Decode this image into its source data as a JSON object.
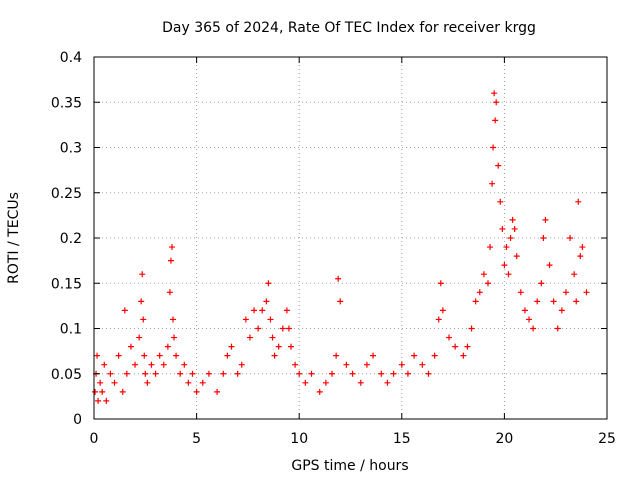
{
  "chart_data": {
    "type": "scatter",
    "title": "Day 365 of 2024, Rate Of TEC Index for receiver krgg",
    "xlabel": "GPS time / hours",
    "ylabel": "ROTI / TECUs",
    "xlim": [
      0,
      25
    ],
    "ylim": [
      0,
      0.4
    ],
    "xticks": [
      0,
      5,
      10,
      15,
      20,
      25
    ],
    "yticks": [
      0,
      0.05,
      0.1,
      0.15,
      0.2,
      0.25,
      0.3,
      0.35,
      0.4
    ],
    "xtick_labels": [
      "0",
      "5",
      "10",
      "15",
      "20",
      "25"
    ],
    "ytick_labels": [
      "0",
      "0.05",
      "0.1",
      "0.15",
      "0.2",
      "0.25",
      "0.3",
      "0.35",
      "0.4"
    ],
    "grid": true,
    "marker": "+",
    "color": "#ff0000",
    "series": [
      {
        "name": "ROTI",
        "x": [
          0.05,
          0.1,
          0.15,
          0.2,
          0.3,
          0.4,
          0.5,
          0.6,
          0.8,
          1.0,
          1.2,
          1.4,
          1.5,
          1.6,
          1.8,
          2.0,
          2.2,
          2.3,
          2.35,
          2.4,
          2.45,
          2.5,
          2.6,
          2.8,
          3.0,
          3.2,
          3.4,
          3.6,
          3.7,
          3.75,
          3.8,
          3.85,
          3.9,
          4.0,
          4.2,
          4.4,
          4.6,
          4.8,
          5.0,
          5.3,
          5.6,
          6.0,
          6.3,
          6.5,
          6.7,
          7.0,
          7.2,
          7.4,
          7.6,
          7.8,
          8.0,
          8.2,
          8.4,
          8.5,
          8.6,
          8.7,
          8.8,
          9.0,
          9.2,
          9.4,
          9.5,
          9.6,
          9.8,
          10.0,
          10.3,
          10.6,
          11.0,
          11.3,
          11.6,
          11.8,
          11.9,
          12.0,
          12.3,
          12.6,
          13.0,
          13.3,
          13.6,
          14.0,
          14.3,
          14.6,
          15.0,
          15.3,
          15.6,
          16.0,
          16.3,
          16.6,
          16.8,
          16.9,
          17.0,
          17.3,
          17.6,
          18.0,
          18.2,
          18.4,
          18.6,
          18.8,
          19.0,
          19.2,
          19.3,
          19.4,
          19.45,
          19.5,
          19.55,
          19.6,
          19.7,
          19.8,
          19.9,
          20.0,
          20.1,
          20.2,
          20.3,
          20.4,
          20.5,
          20.6,
          20.8,
          21.0,
          21.2,
          21.4,
          21.6,
          21.8,
          21.9,
          22.0,
          22.2,
          22.4,
          22.6,
          22.8,
          23.0,
          23.2,
          23.4,
          23.5,
          23.6,
          23.7,
          23.8,
          24.0
        ],
        "y": [
          0.03,
          0.05,
          0.07,
          0.02,
          0.04,
          0.03,
          0.06,
          0.02,
          0.05,
          0.04,
          0.07,
          0.03,
          0.12,
          0.05,
          0.08,
          0.06,
          0.09,
          0.13,
          0.16,
          0.11,
          0.07,
          0.05,
          0.04,
          0.06,
          0.05,
          0.07,
          0.06,
          0.08,
          0.14,
          0.175,
          0.19,
          0.11,
          0.09,
          0.07,
          0.05,
          0.06,
          0.04,
          0.05,
          0.03,
          0.04,
          0.05,
          0.03,
          0.05,
          0.07,
          0.08,
          0.05,
          0.06,
          0.11,
          0.09,
          0.12,
          0.1,
          0.12,
          0.13,
          0.15,
          0.11,
          0.09,
          0.07,
          0.08,
          0.1,
          0.12,
          0.1,
          0.08,
          0.06,
          0.05,
          0.04,
          0.05,
          0.03,
          0.04,
          0.05,
          0.07,
          0.155,
          0.13,
          0.06,
          0.05,
          0.04,
          0.06,
          0.07,
          0.05,
          0.04,
          0.05,
          0.06,
          0.05,
          0.07,
          0.06,
          0.05,
          0.07,
          0.11,
          0.15,
          0.12,
          0.09,
          0.08,
          0.07,
          0.08,
          0.1,
          0.13,
          0.14,
          0.16,
          0.15,
          0.19,
          0.26,
          0.3,
          0.36,
          0.33,
          0.35,
          0.28,
          0.24,
          0.21,
          0.17,
          0.19,
          0.16,
          0.2,
          0.22,
          0.21,
          0.18,
          0.14,
          0.12,
          0.11,
          0.1,
          0.13,
          0.15,
          0.2,
          0.22,
          0.17,
          0.13,
          0.1,
          0.12,
          0.14,
          0.2,
          0.16,
          0.13,
          0.24,
          0.18,
          0.19,
          0.14
        ]
      }
    ]
  }
}
